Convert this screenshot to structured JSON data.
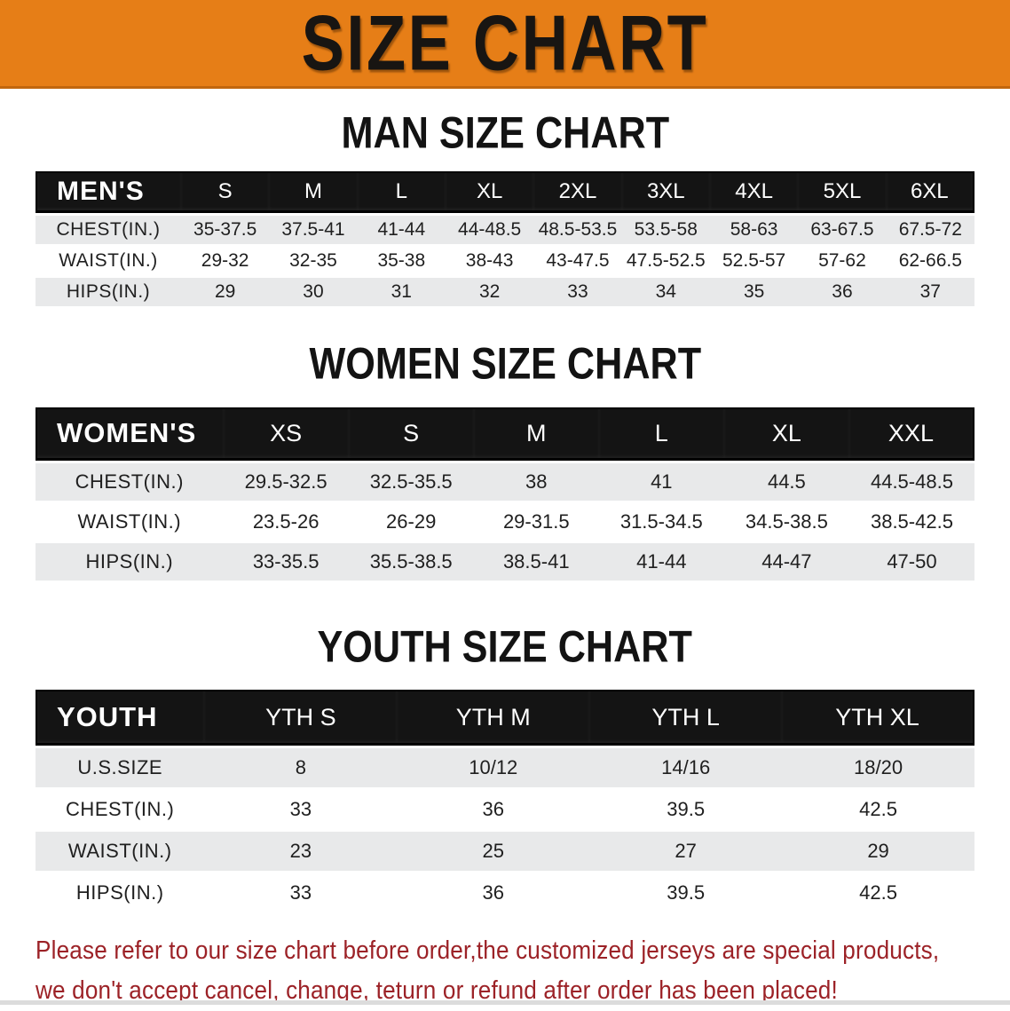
{
  "banner": {
    "title": "SIZE CHART",
    "bg_color": "#e67e17"
  },
  "theme": {
    "header_band_color": "#141414",
    "stripe_color": "#e8e9ea",
    "disclaimer_color": "#9c2227"
  },
  "sections": [
    {
      "heading": "MAN SIZE CHART",
      "table": {
        "header_label": "MEN'S",
        "columns": [
          "S",
          "M",
          "L",
          "XL",
          "2XL",
          "3XL",
          "4XL",
          "5XL",
          "6XL"
        ],
        "rows": [
          {
            "label": "CHEST(IN.)",
            "values": [
              "35-37.5",
              "37.5-41",
              "41-44",
              "44-48.5",
              "48.5-53.5",
              "53.5-58",
              "58-63",
              "63-67.5",
              "67.5-72"
            ]
          },
          {
            "label": "WAIST(IN.)",
            "values": [
              "29-32",
              "32-35",
              "35-38",
              "38-43",
              "43-47.5",
              "47.5-52.5",
              "52.5-57",
              "57-62",
              "62-66.5"
            ]
          },
          {
            "label": "HIPS(IN.)",
            "values": [
              "29",
              "30",
              "31",
              "32",
              "33",
              "34",
              "35",
              "36",
              "37"
            ]
          }
        ]
      }
    },
    {
      "heading": "WOMEN SIZE CHART",
      "table": {
        "header_label": "WOMEN'S",
        "columns": [
          "XS",
          "S",
          "M",
          "L",
          "XL",
          "XXL"
        ],
        "rows": [
          {
            "label": "CHEST(IN.)",
            "values": [
              "29.5-32.5",
              "32.5-35.5",
              "38",
              "41",
              "44.5",
              "44.5-48.5"
            ]
          },
          {
            "label": "WAIST(IN.)",
            "values": [
              "23.5-26",
              "26-29",
              "29-31.5",
              "31.5-34.5",
              "34.5-38.5",
              "38.5-42.5"
            ]
          },
          {
            "label": "HIPS(IN.)",
            "values": [
              "33-35.5",
              "35.5-38.5",
              "38.5-41",
              "41-44",
              "44-47",
              "47-50"
            ]
          }
        ]
      }
    },
    {
      "heading": "YOUTH SIZE CHART",
      "table": {
        "header_label": "YOUTH",
        "columns": [
          "YTH S",
          "YTH M",
          "YTH L",
          "YTH XL"
        ],
        "rows": [
          {
            "label": "U.S.SIZE",
            "values": [
              "8",
              "10/12",
              "14/16",
              "18/20"
            ]
          },
          {
            "label": "CHEST(IN.)",
            "values": [
              "33",
              "36",
              "39.5",
              "42.5"
            ]
          },
          {
            "label": "WAIST(IN.)",
            "values": [
              "23",
              "25",
              "27",
              "29"
            ]
          },
          {
            "label": "HIPS(IN.)",
            "values": [
              "33",
              "36",
              "39.5",
              "42.5"
            ]
          }
        ]
      }
    }
  ],
  "disclaimer": {
    "lines": [
      "Please refer to our size chart before order,the customized jerseys are special products,",
      "we don't accept cancel, change, teturn or refund after order has been placed!"
    ]
  }
}
